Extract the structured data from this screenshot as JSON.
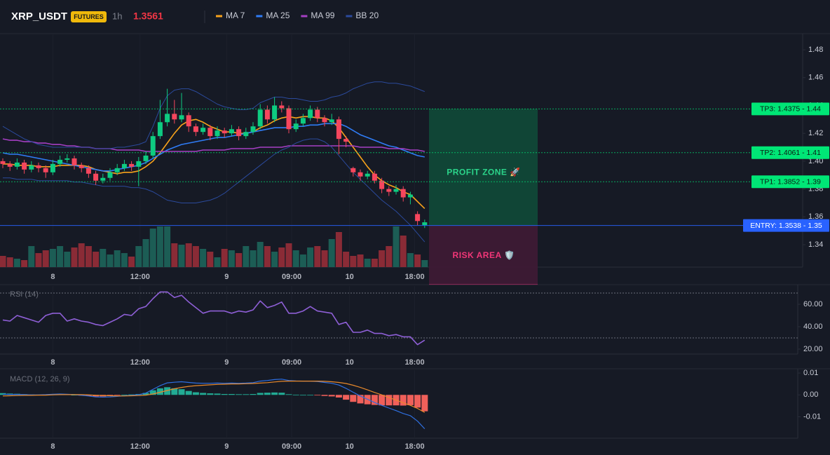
{
  "header": {
    "symbol": "XRP_USDT",
    "badge": "FUTURES",
    "interval": "1h",
    "price": "1.3561"
  },
  "chart_data": [
    {
      "type": "candlestick",
      "up_color": "#0ecb81",
      "down_color": "#f6465d",
      "volume_up_color": "#1c5d55",
      "volume_down_color": "#8a2b36",
      "ylim": [
        1.3239,
        1.4916
      ],
      "yticks": [
        1.48,
        1.46,
        1.44,
        1.42,
        {
          "value": 1.4,
          "label": "1.40"
        },
        1.38,
        1.36,
        1.34
      ],
      "xlim": [
        -0.4,
        59.6
      ],
      "xticks": [
        {
          "value": 7,
          "label": "8"
        },
        {
          "value": 19.2,
          "label": "12:00"
        },
        {
          "value": 31.3,
          "label": "9"
        },
        {
          "value": 40.4,
          "label": "09:00"
        },
        {
          "value": 48.5,
          "label": "10"
        },
        {
          "value": 57.6,
          "label": "18:00"
        }
      ],
      "candles": [
        [
          1.4,
          1.402,
          1.395,
          1.398
        ],
        [
          1.398,
          1.4,
          1.393,
          1.396
        ],
        [
          1.396,
          1.402,
          1.394,
          1.399
        ],
        [
          1.399,
          1.401,
          1.391,
          1.394
        ],
        [
          1.394,
          1.4,
          1.392,
          1.397
        ],
        [
          1.397,
          1.399,
          1.392,
          1.395
        ],
        [
          1.395,
          1.397,
          1.388,
          1.392
        ],
        [
          1.392,
          1.401,
          1.39,
          1.398
        ],
        [
          1.398,
          1.404,
          1.396,
          1.401
        ],
        [
          1.401,
          1.405,
          1.399,
          1.402
        ],
        [
          1.402,
          1.404,
          1.394,
          1.397
        ],
        [
          1.397,
          1.399,
          1.392,
          1.395
        ],
        [
          1.395,
          1.397,
          1.388,
          1.391
        ],
        [
          1.391,
          1.393,
          1.383,
          1.386
        ],
        [
          1.386,
          1.391,
          1.384,
          1.388
        ],
        [
          1.388,
          1.395,
          1.386,
          1.392
        ],
        [
          1.392,
          1.398,
          1.39,
          1.395
        ],
        [
          1.395,
          1.401,
          1.393,
          1.398
        ],
        [
          1.398,
          1.4,
          1.393,
          1.396
        ],
        [
          1.396,
          1.403,
          1.382,
          1.4
        ],
        [
          1.4,
          1.407,
          1.398,
          1.404
        ],
        [
          1.404,
          1.421,
          1.402,
          1.418
        ],
        [
          1.418,
          1.444,
          1.416,
          1.428
        ],
        [
          1.428,
          1.452,
          1.425,
          1.434
        ],
        [
          1.434,
          1.444,
          1.427,
          1.43
        ],
        [
          1.43,
          1.449,
          1.428,
          1.433
        ],
        [
          1.433,
          1.435,
          1.421,
          1.425
        ],
        [
          1.425,
          1.427,
          1.418,
          1.421
        ],
        [
          1.421,
          1.427,
          1.419,
          1.424
        ],
        [
          1.424,
          1.426,
          1.415,
          1.418
        ],
        [
          1.418,
          1.425,
          1.416,
          1.422
        ],
        [
          1.422,
          1.424,
          1.417,
          1.42
        ],
        [
          1.42,
          1.426,
          1.418,
          1.423
        ],
        [
          1.423,
          1.425,
          1.415,
          1.418
        ],
        [
          1.418,
          1.424,
          1.416,
          1.421
        ],
        [
          1.421,
          1.428,
          1.419,
          1.425
        ],
        [
          1.425,
          1.441,
          1.423,
          1.437
        ],
        [
          1.437,
          1.44,
          1.427,
          1.43
        ],
        [
          1.43,
          1.446,
          1.428,
          1.44
        ],
        [
          1.44,
          1.443,
          1.435,
          1.438
        ],
        [
          1.438,
          1.44,
          1.42,
          1.423
        ],
        [
          1.423,
          1.43,
          1.421,
          1.427
        ],
        [
          1.427,
          1.434,
          1.425,
          1.431
        ],
        [
          1.431,
          1.44,
          1.429,
          1.437
        ],
        [
          1.437,
          1.439,
          1.428,
          1.431
        ],
        [
          1.431,
          1.433,
          1.425,
          1.428
        ],
        [
          1.428,
          1.434,
          1.426,
          1.43
        ],
        [
          1.43,
          1.432,
          1.405,
          1.416
        ],
        [
          1.416,
          1.418,
          1.41,
          1.414
        ],
        [
          1.395,
          1.396,
          1.389,
          1.392
        ],
        [
          1.392,
          1.394,
          1.386,
          1.389
        ],
        [
          1.389,
          1.393,
          1.387,
          1.391
        ],
        [
          1.391,
          1.393,
          1.384,
          1.386
        ],
        [
          1.386,
          1.388,
          1.377,
          1.38
        ],
        [
          1.38,
          1.382,
          1.375,
          1.378
        ],
        [
          1.378,
          1.383,
          1.376,
          1.38
        ],
        [
          1.38,
          1.382,
          1.371,
          1.374
        ],
        [
          1.374,
          1.378,
          1.369,
          1.376
        ],
        [
          1.362,
          1.364,
          1.354,
          1.357
        ],
        [
          1.354,
          1.358,
          1.352,
          1.3561
        ]
      ],
      "volume": [
        16,
        14,
        12,
        10,
        30,
        20,
        24,
        26,
        30,
        22,
        28,
        34,
        30,
        22,
        26,
        18,
        24,
        20,
        15,
        30,
        40,
        55,
        58,
        58,
        34,
        32,
        34,
        30,
        26,
        22,
        14,
        26,
        24,
        20,
        30,
        24,
        36,
        30,
        22,
        28,
        34,
        24,
        18,
        28,
        30,
        24,
        40,
        50,
        22,
        16,
        18,
        12,
        12,
        24,
        30,
        58,
        45,
        20,
        18,
        10
      ],
      "series": [
        {
          "name": "MA 7",
          "color": "#f7a21b",
          "values": [
            1.398,
            1.398,
            1.397,
            1.397,
            1.397,
            1.396,
            1.396,
            1.396,
            1.397,
            1.397,
            1.397,
            1.397,
            1.396,
            1.394,
            1.393,
            1.392,
            1.391,
            1.392,
            1.392,
            1.393,
            1.396,
            1.4,
            1.406,
            1.413,
            1.42,
            1.426,
            1.429,
            1.43,
            1.428,
            1.425,
            1.423,
            1.421,
            1.421,
            1.42,
            1.42,
            1.421,
            1.424,
            1.426,
            1.429,
            1.431,
            1.432,
            1.431,
            1.432,
            1.432,
            1.431,
            1.431,
            1.429,
            1.424,
            1.417,
            1.41,
            1.403,
            1.396,
            1.39,
            1.386,
            1.383,
            1.381,
            1.378,
            1.376,
            1.371,
            1.366
          ]
        },
        {
          "name": "MA 25",
          "color": "#2f7cf6",
          "values": [
            1.406,
            1.405,
            1.405,
            1.404,
            1.403,
            1.402,
            1.401,
            1.4,
            1.399,
            1.398,
            1.397,
            1.396,
            1.395,
            1.394,
            1.393,
            1.393,
            1.394,
            1.395,
            1.396,
            1.397,
            1.399,
            1.402,
            1.405,
            1.408,
            1.41,
            1.412,
            1.413,
            1.414,
            1.415,
            1.416,
            1.417,
            1.417,
            1.418,
            1.419,
            1.42,
            1.421,
            1.422,
            1.423,
            1.424,
            1.424,
            1.424,
            1.425,
            1.425,
            1.426,
            1.426,
            1.427,
            1.427,
            1.427,
            1.425,
            1.422,
            1.419,
            1.417,
            1.415,
            1.413,
            1.411,
            1.41,
            1.408,
            1.406,
            1.404,
            1.403
          ]
        },
        {
          "name": "MA 99",
          "color": "#a53fc4",
          "values": [
            1.416,
            1.415,
            1.415,
            1.414,
            1.414,
            1.413,
            1.413,
            1.412,
            1.412,
            1.411,
            1.411,
            1.41,
            1.41,
            1.409,
            1.409,
            1.409,
            1.408,
            1.408,
            1.408,
            1.408,
            1.407,
            1.407,
            1.407,
            1.407,
            1.407,
            1.407,
            1.407,
            1.407,
            1.408,
            1.408,
            1.408,
            1.408,
            1.409,
            1.409,
            1.409,
            1.409,
            1.41,
            1.41,
            1.41,
            1.41,
            1.411,
            1.411,
            1.411,
            1.411,
            1.411,
            1.411,
            1.411,
            1.411,
            1.411,
            1.411,
            1.41,
            1.41,
            1.41,
            1.41,
            1.409,
            1.409,
            1.409,
            1.408,
            1.408,
            1.407
          ]
        },
        {
          "name": "BB 20",
          "color": "#2b4a9c",
          "upper": [
            1.425,
            1.422,
            1.419,
            1.416,
            1.414,
            1.412,
            1.411,
            1.41,
            1.41,
            1.41,
            1.41,
            1.41,
            1.41,
            1.409,
            1.409,
            1.409,
            1.41,
            1.41,
            1.411,
            1.412,
            1.414,
            1.425,
            1.438,
            1.447,
            1.451,
            1.452,
            1.452,
            1.45,
            1.447,
            1.444,
            1.441,
            1.439,
            1.438,
            1.437,
            1.437,
            1.438,
            1.442,
            1.444,
            1.446,
            1.446,
            1.445,
            1.445,
            1.444,
            1.443,
            1.443,
            1.444,
            1.446,
            1.447,
            1.449,
            1.452,
            1.454,
            1.456,
            1.457,
            1.457,
            1.456,
            1.456,
            1.455,
            1.454,
            1.452,
            1.45
          ],
          "lower": [
            1.388,
            1.388,
            1.387,
            1.387,
            1.387,
            1.386,
            1.386,
            1.386,
            1.386,
            1.386,
            1.385,
            1.385,
            1.384,
            1.383,
            1.382,
            1.382,
            1.382,
            1.382,
            1.381,
            1.381,
            1.38,
            1.378,
            1.375,
            1.372,
            1.371,
            1.37,
            1.37,
            1.37,
            1.371,
            1.372,
            1.374,
            1.377,
            1.381,
            1.385,
            1.389,
            1.393,
            1.397,
            1.401,
            1.405,
            1.408,
            1.41,
            1.413,
            1.415,
            1.416,
            1.416,
            1.414,
            1.41,
            1.404,
            1.398,
            1.392,
            1.387,
            1.382,
            1.377,
            1.372,
            1.368,
            1.364,
            1.359,
            1.354,
            1.348,
            1.342
          ]
        }
      ],
      "levels": [
        {
          "label": "TP3: 1.4375 - 1.44",
          "value": 1.4375,
          "color": "#00e676"
        },
        {
          "label": "TP2: 1.4061 - 1.41",
          "value": 1.4061,
          "color": "#00e676"
        },
        {
          "label": "TP1: 1.3852 - 1.39",
          "value": 1.3852,
          "color": "#00e676"
        },
        {
          "label": "ENTRY: 1.3538 - 1.35",
          "value": 1.3538,
          "color": "#2962ff"
        }
      ],
      "zones": {
        "profit": "PROFIT ZONE 🚀",
        "risk": "RISK AREA 🛡️"
      }
    },
    {
      "type": "line",
      "title": "RSI (14)",
      "color": "#8e5fd6",
      "ylim": [
        15.6,
        76.25
      ],
      "yticks": [
        {
          "value": 60,
          "label": "60.00"
        },
        {
          "value": 40,
          "label": "40.00"
        },
        {
          "value": 20,
          "label": "20.00"
        }
      ],
      "levels": [
        70,
        30
      ],
      "values": [
        46,
        45,
        50,
        48,
        46,
        44,
        50,
        52,
        52,
        45,
        47,
        45,
        44,
        42,
        41,
        44,
        47,
        51,
        50,
        56,
        58,
        65,
        71,
        71,
        66,
        68,
        62,
        57,
        52,
        54,
        54,
        54,
        52,
        54,
        53,
        55,
        63,
        57,
        59,
        62,
        52,
        52,
        54,
        58,
        54,
        53,
        52,
        42,
        44,
        35,
        35,
        37,
        34,
        34,
        32,
        33,
        31,
        31,
        24,
        28
      ]
    },
    {
      "type": "macd",
      "title": "MACD (12, 26, 9)",
      "macd_color": "#2f6fe0",
      "signal_color": "#e8892b",
      "up_color": "#22ab94",
      "down_color": "#f0605a",
      "ylim": [
        -0.0198,
        0.0113
      ],
      "yticks": [
        0.01,
        {
          "value": 0,
          "label": "0.00"
        },
        -0.01
      ],
      "macd": [
        0.0003,
        0.0002,
        0.0002,
        0.0001,
        0.0,
        0.0,
        0.0001,
        0.0003,
        0.0004,
        0.0003,
        0.0001,
        -0.0002,
        -0.0005,
        -0.0009,
        -0.001,
        -0.0009,
        -0.0007,
        -0.0004,
        -0.0002,
        0.0001,
        0.0008,
        0.0025,
        0.0042,
        0.0055,
        0.0058,
        0.006,
        0.0057,
        0.0054,
        0.0053,
        0.0053,
        0.0054,
        0.0053,
        0.0054,
        0.0053,
        0.0054,
        0.0056,
        0.0063,
        0.0066,
        0.007,
        0.0072,
        0.0066,
        0.0064,
        0.0063,
        0.0063,
        0.0061,
        0.0057,
        0.0053,
        0.0045,
        0.003,
        0.0012,
        -0.0005,
        -0.002,
        -0.0035,
        -0.0048,
        -0.006,
        -0.0072,
        -0.0085,
        -0.0095,
        -0.012,
        -0.0155
      ],
      "signal": [
        -0.0005,
        -0.0004,
        -0.0003,
        -0.0002,
        -0.0002,
        -0.0001,
        -0.0001,
        0.0,
        0.0001,
        0.0001,
        0.0001,
        0.0001,
        0.0,
        -0.0002,
        -0.0003,
        -0.0004,
        -0.0005,
        -0.0005,
        -0.0004,
        -0.0003,
        -0.0001,
        0.0004,
        0.0012,
        0.002,
        0.0028,
        0.0034,
        0.0039,
        0.0042,
        0.0044,
        0.0046,
        0.0048,
        0.0049,
        0.005,
        0.005,
        0.0051,
        0.0052,
        0.0054,
        0.0056,
        0.0059,
        0.0062,
        0.0063,
        0.0063,
        0.0063,
        0.0063,
        0.0063,
        0.0062,
        0.006,
        0.0057,
        0.0052,
        0.0044,
        0.0034,
        0.0023,
        0.0011,
        0.0,
        -0.0012,
        -0.0024,
        -0.0036,
        -0.0048,
        -0.0062,
        -0.008
      ],
      "histogram": [
        0.0008,
        0.0006,
        0.0005,
        0.0003,
        0.0002,
        0.0001,
        0.0002,
        0.0003,
        0.0003,
        0.0002,
        0.0,
        -0.0003,
        -0.0005,
        -0.0007,
        -0.0007,
        -0.0005,
        -0.0002,
        0.0001,
        0.0002,
        0.0004,
        0.0009,
        0.0021,
        0.003,
        0.0035,
        0.003,
        0.0026,
        0.0018,
        0.0012,
        0.0009,
        0.0007,
        0.0006,
        0.0004,
        0.0004,
        0.0003,
        0.0003,
        0.0004,
        0.0009,
        0.001,
        0.0011,
        0.001,
        0.0003,
        0.0001,
        0.0,
        0.0,
        -0.0002,
        -0.0005,
        -0.0007,
        -0.0012,
        -0.0022,
        -0.0032,
        -0.0039,
        -0.0043,
        -0.0046,
        -0.0048,
        -0.0048,
        -0.0048,
        -0.0049,
        -0.0047,
        -0.0058,
        -0.0075
      ]
    }
  ]
}
